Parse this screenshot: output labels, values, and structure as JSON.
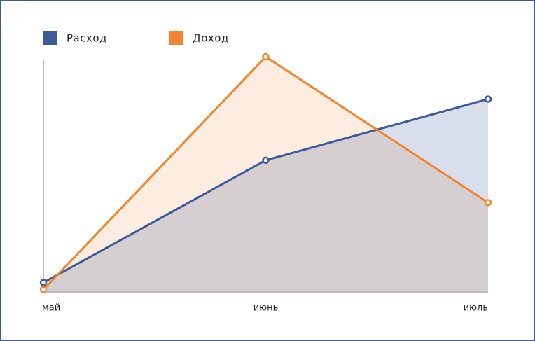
{
  "chart_data": {
    "type": "area",
    "categories": [
      "май",
      "июнь",
      "июль"
    ],
    "series": [
      {
        "name": "Расход",
        "color": "#3d5a99",
        "values": [
          4,
          56,
          82
        ]
      },
      {
        "name": "Доход",
        "color": "#f0852d",
        "values": [
          1,
          100,
          38
        ]
      }
    ],
    "ylim": [
      0,
      100
    ]
  }
}
